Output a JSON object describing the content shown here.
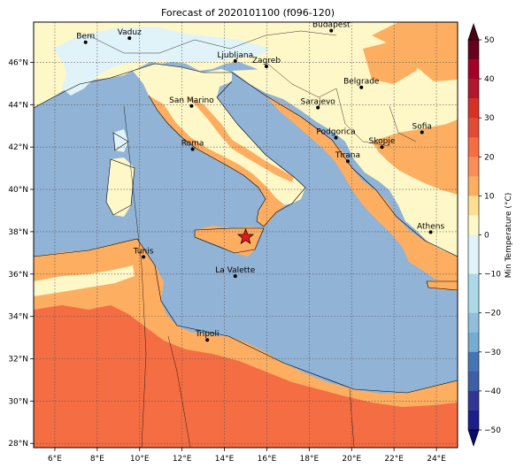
{
  "title": "Forecast of 2020101100 (f096-120)",
  "map": {
    "lon_range": [
      5.0,
      25.0
    ],
    "lat_range": [
      27.8,
      47.9
    ],
    "x_ticks": [
      "6°E",
      "8°E",
      "10°E",
      "12°E",
      "14°E",
      "16°E",
      "18°E",
      "20°E",
      "22°E",
      "24°E"
    ],
    "x_tick_values": [
      6,
      8,
      10,
      12,
      14,
      16,
      18,
      20,
      22,
      24
    ],
    "y_ticks": [
      "28°N",
      "30°N",
      "32°N",
      "34°N",
      "36°N",
      "38°N",
      "40°N",
      "42°N",
      "44°N",
      "46°N"
    ],
    "y_tick_values": [
      28,
      30,
      32,
      34,
      36,
      38,
      40,
      42,
      44,
      46
    ],
    "gridlines": true,
    "sea_color": "#91b3d6",
    "land_colors": {
      "cold": "#e0f3f8",
      "mild": "#fef7c7",
      "warm": "#fdae61",
      "hot": "#f46d43"
    },
    "marker": {
      "label": "event-star",
      "lon": 15.0,
      "lat": 37.75,
      "color": "#e41a1c"
    },
    "cities": [
      {
        "name": "Bern",
        "lon": 7.45,
        "lat": 46.95
      },
      {
        "name": "Vaduz",
        "lon": 9.52,
        "lat": 47.14
      },
      {
        "name": "Budapest",
        "lon": 19.04,
        "lat": 47.5
      },
      {
        "name": "Ljubljana",
        "lon": 14.51,
        "lat": 46.06
      },
      {
        "name": "Zagreb",
        "lon": 15.98,
        "lat": 45.81
      },
      {
        "name": "Belgrade",
        "lon": 20.46,
        "lat": 44.82
      },
      {
        "name": "San Marino",
        "lon": 12.45,
        "lat": 43.94
      },
      {
        "name": "Sarajevo",
        "lon": 18.41,
        "lat": 43.86
      },
      {
        "name": "Sofia",
        "lon": 23.32,
        "lat": 42.7
      },
      {
        "name": "Podgorica",
        "lon": 19.26,
        "lat": 42.44
      },
      {
        "name": "Skopje",
        "lon": 21.43,
        "lat": 42.0
      },
      {
        "name": "Roma",
        "lon": 12.5,
        "lat": 41.9
      },
      {
        "name": "Tirana",
        "lon": 19.82,
        "lat": 41.33
      },
      {
        "name": "Athens",
        "lon": 23.73,
        "lat": 37.98
      },
      {
        "name": "Tunis",
        "lon": 10.18,
        "lat": 36.81
      },
      {
        "name": "La Valette",
        "lon": 14.51,
        "lat": 35.9
      },
      {
        "name": "Tripoli",
        "lon": 13.19,
        "lat": 32.89
      }
    ]
  },
  "colorbar": {
    "label": "Min Temperature (°C)",
    "ticks": [
      "50",
      "40",
      "30",
      "20",
      "10",
      "0",
      "−10",
      "−20",
      "−30",
      "−40",
      "−50"
    ],
    "tick_values": [
      50,
      40,
      30,
      20,
      10,
      0,
      -10,
      -20,
      -30,
      -40,
      -50
    ],
    "levels": [
      {
        "from": 45,
        "to": 50,
        "color": "#67001f"
      },
      {
        "from": 40,
        "to": 45,
        "color": "#a50026"
      },
      {
        "from": 35,
        "to": 40,
        "color": "#b2182b"
      },
      {
        "from": 30,
        "to": 35,
        "color": "#d73027"
      },
      {
        "from": 25,
        "to": 30,
        "color": "#e34a33"
      },
      {
        "from": 20,
        "to": 25,
        "color": "#f46d43"
      },
      {
        "from": 15,
        "to": 20,
        "color": "#fc8d59"
      },
      {
        "from": 10,
        "to": 15,
        "color": "#fdae61"
      },
      {
        "from": 5,
        "to": 10,
        "color": "#fee090"
      },
      {
        "from": 0,
        "to": 5,
        "color": "#fef7c7"
      },
      {
        "from": -5,
        "to": 0,
        "color": "#e0f3f8"
      },
      {
        "from": -10,
        "to": -5,
        "color": "#e0f3f8"
      },
      {
        "from": -20,
        "to": -10,
        "color": "#abd9e9"
      },
      {
        "from": -25,
        "to": -20,
        "color": "#91bfdb"
      },
      {
        "from": -30,
        "to": -25,
        "color": "#74add1"
      },
      {
        "from": -35,
        "to": -30,
        "color": "#4575b4"
      },
      {
        "from": -40,
        "to": -35,
        "color": "#3c5fa8"
      },
      {
        "from": -45,
        "to": -40,
        "color": "#313695"
      },
      {
        "from": -50,
        "to": -45,
        "color": "#1c1f8a"
      }
    ],
    "extend_top_color": "#4d0014",
    "extend_bottom_color": "#0b0b6b"
  }
}
